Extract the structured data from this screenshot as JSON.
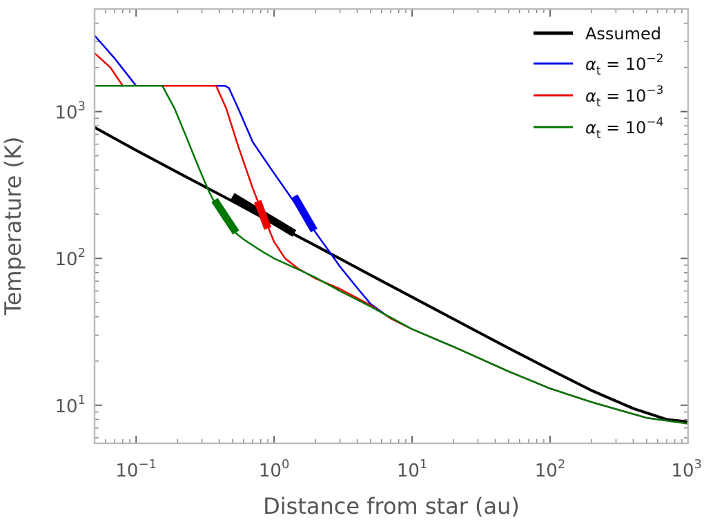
{
  "chart_data": {
    "type": "line",
    "xlabel": "Distance from star (au)",
    "ylabel": "Temperature (K)",
    "xscale": "log",
    "yscale": "log",
    "xlim": [
      0.05,
      1000
    ],
    "ylim": [
      5.5,
      5000
    ],
    "grid": false,
    "legend_position": "top-right",
    "x_ticks": [
      {
        "value": 0.1,
        "base": "10",
        "exp": "−1"
      },
      {
        "value": 1,
        "base": "10",
        "exp": "0"
      },
      {
        "value": 10,
        "base": "10",
        "exp": "1"
      },
      {
        "value": 100,
        "base": "10",
        "exp": "2"
      },
      {
        "value": 1000,
        "base": "10",
        "exp": "3"
      }
    ],
    "y_ticks": [
      {
        "value": 10,
        "base": "10",
        "exp": "1"
      },
      {
        "value": 100,
        "base": "10",
        "exp": "2"
      },
      {
        "value": 1000,
        "base": "10",
        "exp": "3"
      }
    ],
    "series": [
      {
        "name": "Assumed",
        "legend_prefix": "",
        "legend_exp": "",
        "color": "#000000",
        "width": 4,
        "x": [
          0.05,
          0.1,
          0.2,
          0.5,
          1,
          2,
          5,
          10,
          20,
          50,
          100,
          200,
          400,
          700,
          1000
        ],
        "y": [
          780,
          545,
          385,
          245,
          172,
          122,
          77,
          54.5,
          38.6,
          24.5,
          17.5,
          12.6,
          9.5,
          8.0,
          7.7
        ],
        "highlight": {
          "x": [
            0.5,
            1.4
          ],
          "y": [
            265,
            148
          ]
        }
      },
      {
        "name": "α_t = 10^-2",
        "legend_prefix": "α",
        "legend_sub": "t",
        "legend_base": " = 10",
        "legend_exp": "−2",
        "color": "#0000ee",
        "width": 2.5,
        "x": [
          0.05,
          0.07,
          0.1,
          0.12,
          0.2,
          0.3,
          0.44,
          0.47,
          0.55,
          0.7,
          1,
          1.5,
          2,
          2.5,
          3,
          4,
          5,
          7,
          10,
          15,
          20,
          50,
          100,
          200,
          500,
          1000
        ],
        "y": [
          3300,
          2300,
          1500,
          1500,
          1500,
          1500,
          1500,
          1450,
          1050,
          620,
          380,
          220,
          150,
          112,
          88,
          63,
          49,
          39,
          33,
          28,
          25,
          17,
          13,
          10.5,
          8.2,
          7.5
        ],
        "highlight": {
          "x": [
            1.4,
            1.95
          ],
          "y": [
            265,
            155
          ]
        }
      },
      {
        "name": "α_t = 10^-3",
        "legend_prefix": "α",
        "legend_sub": "t",
        "legend_base": " = 10",
        "legend_exp": "−3",
        "color": "#ee0000",
        "width": 2.5,
        "x": [
          0.05,
          0.065,
          0.08,
          0.1,
          0.2,
          0.3,
          0.38,
          0.45,
          0.55,
          0.7,
          0.9,
          1.0,
          1.2,
          1.5,
          2,
          3,
          5,
          7,
          10,
          20,
          50,
          100,
          200,
          500,
          1000
        ],
        "y": [
          2500,
          2000,
          1500,
          1500,
          1500,
          1500,
          1500,
          1050,
          580,
          300,
          165,
          130,
          100,
          85,
          73,
          62,
          48,
          39,
          33,
          25,
          17,
          13,
          10.5,
          8.2,
          7.5
        ],
        "highlight": {
          "x": [
            0.76,
            0.9
          ],
          "y": [
            245,
            160
          ]
        }
      },
      {
        "name": "α_t = 10^-4",
        "legend_prefix": "α",
        "legend_sub": "t",
        "legend_base": " = 10",
        "legend_exp": "−4",
        "color": "#007700",
        "width": 2.5,
        "x": [
          0.05,
          0.1,
          0.155,
          0.19,
          0.23,
          0.28,
          0.34,
          0.38,
          0.43,
          0.5,
          0.6,
          0.8,
          1,
          1.5,
          2,
          3,
          5,
          10,
          20,
          50,
          100,
          200,
          500,
          1000
        ],
        "y": [
          1500,
          1500,
          1500,
          1050,
          680,
          430,
          280,
          230,
          185,
          155,
          135,
          113,
          100,
          84,
          74,
          60,
          47,
          33,
          25,
          17,
          13,
          10.5,
          8.2,
          7.5
        ],
        "highlight": {
          "x": [
            0.37,
            0.53
          ],
          "y": [
            250,
            150
          ]
        }
      }
    ]
  }
}
